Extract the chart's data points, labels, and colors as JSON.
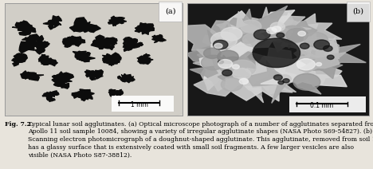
{
  "fig_label_a": "(a)",
  "fig_label_b": "(b)",
  "scale_bar_a": "1 mm",
  "scale_bar_b": "0.1 mm",
  "caption_bold": "Fig. 7.2.",
  "caption_rest": "  Typical lunar soil agglutinates. (a) Optical microscope photograph of a number of agglutinates separated from Apollo 11 soil sample 10084, showing a variety of irregular agglutinate shapes (NASA Photo S69-54827). (b) Scanning electron photomicrograph of a doughnut-shaped agglutinate. This agglutinate, removed from soil 10084, has a glassy surface that is extensively coated with small soil fragments. A few larger vesicles are also visible (NASA Photo S87-38812).",
  "bg_color": "#e8e4dc",
  "panel_a_bg": "#d8d5ce",
  "panel_b_bg": "#181818",
  "border_color": "#999999",
  "caption_fontsize": 5.6,
  "label_fontsize": 7.0,
  "fig_width": 4.68,
  "fig_height": 2.12
}
